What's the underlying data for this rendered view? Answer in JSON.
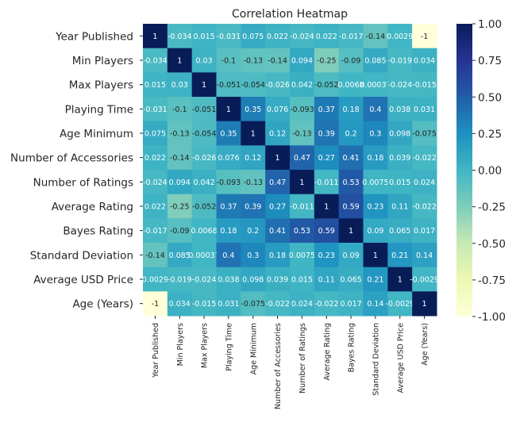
{
  "chart_data": {
    "type": "heatmap",
    "title": "Correlation Heatmap",
    "labels": [
      "Year Published",
      "Min Players",
      "Max Players",
      "Playing Time",
      "Age Minimum",
      "Number of Accessories",
      "Number of Ratings",
      "Average Rating",
      "Bayes Rating",
      "Standard Deviation",
      "Average USD Price",
      "Age (Years)"
    ],
    "matrix": [
      [
        1,
        -0.034,
        0.015,
        -0.031,
        0.075,
        0.022,
        -0.024,
        0.022,
        -0.017,
        -0.14,
        0.0029,
        -1
      ],
      [
        -0.034,
        1,
        0.03,
        -0.1,
        -0.13,
        -0.14,
        0.094,
        -0.25,
        -0.09,
        0.085,
        -0.019,
        0.034
      ],
      [
        0.015,
        0.03,
        1,
        -0.051,
        -0.054,
        -0.026,
        0.042,
        -0.052,
        0.0068,
        0.00037,
        -0.024,
        -0.015
      ],
      [
        -0.031,
        -0.1,
        -0.051,
        1,
        0.35,
        0.076,
        -0.093,
        0.37,
        0.18,
        0.4,
        0.038,
        0.031
      ],
      [
        0.075,
        -0.13,
        -0.054,
        0.35,
        1,
        0.12,
        -0.13,
        0.39,
        0.2,
        0.3,
        0.098,
        -0.075
      ],
      [
        0.022,
        -0.14,
        -0.026,
        0.076,
        0.12,
        1,
        0.47,
        0.27,
        0.41,
        0.18,
        0.039,
        -0.022
      ],
      [
        -0.024,
        0.094,
        0.042,
        -0.093,
        -0.13,
        0.47,
        1,
        -0.011,
        0.53,
        0.0075,
        0.015,
        0.024
      ],
      [
        0.022,
        -0.25,
        -0.052,
        0.37,
        0.39,
        0.27,
        -0.011,
        1,
        0.59,
        0.23,
        0.11,
        -0.022
      ],
      [
        -0.017,
        -0.09,
        0.0068,
        0.18,
        0.2,
        0.41,
        0.53,
        0.59,
        1,
        0.09,
        0.065,
        0.017
      ],
      [
        -0.14,
        0.085,
        0.00037,
        0.4,
        0.3,
        0.18,
        0.0075,
        0.23,
        0.09,
        1,
        0.21,
        0.14
      ],
      [
        0.0029,
        -0.019,
        -0.024,
        0.038,
        0.098,
        0.039,
        0.015,
        0.11,
        0.065,
        0.21,
        1,
        -0.0029
      ],
      [
        -1,
        0.034,
        -0.015,
        0.031,
        -0.075,
        -0.022,
        0.024,
        -0.022,
        0.017,
        0.14,
        -0.0029,
        1
      ]
    ],
    "vmin": -1,
    "vmax": 1,
    "colormap": [
      "#ffffd9",
      "#edf8b1",
      "#c7e9b4",
      "#7fcdbb",
      "#41b6c4",
      "#1d91c0",
      "#225ea8",
      "#253494",
      "#081d58"
    ],
    "colorbar_ticks": [
      "1.00",
      "0.75",
      "0.50",
      "0.25",
      "0.00",
      "-0.25",
      "-0.50",
      "-0.75",
      "-1.00"
    ],
    "colorbar_tick_values": [
      1,
      0.75,
      0.5,
      0.25,
      0,
      -0.25,
      -0.5,
      -0.75,
      -1
    ]
  }
}
